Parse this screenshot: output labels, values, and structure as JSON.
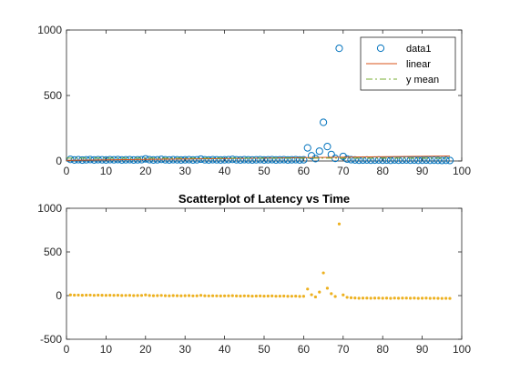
{
  "figure": {
    "background": "#ffffff",
    "axis_color": "#262626"
  },
  "chart_data": [
    {
      "type": "scatter",
      "title": "",
      "xlabel": "",
      "ylabel": "",
      "xlim": [
        0,
        100
      ],
      "ylim": [
        0,
        1000
      ],
      "xticks": [
        0,
        10,
        20,
        30,
        40,
        50,
        60,
        70,
        80,
        90,
        100
      ],
      "yticks": [
        0,
        500,
        1000
      ],
      "grid": false,
      "legend": {
        "position": "top-right",
        "entries": [
          "data1",
          "linear",
          "y mean"
        ]
      },
      "series": [
        {
          "name": "data1",
          "kind": "scatter",
          "marker": "open-circle",
          "color": "#0072BD",
          "x": [
            1,
            2,
            3,
            4,
            5,
            6,
            7,
            8,
            9,
            10,
            11,
            12,
            13,
            14,
            15,
            16,
            17,
            18,
            19,
            20,
            21,
            22,
            23,
            24,
            25,
            26,
            27,
            28,
            29,
            30,
            31,
            32,
            33,
            34,
            35,
            36,
            37,
            38,
            39,
            40,
            41,
            42,
            43,
            44,
            45,
            46,
            47,
            48,
            49,
            50,
            51,
            52,
            53,
            54,
            55,
            56,
            57,
            58,
            59,
            60,
            61,
            62,
            63,
            64,
            65,
            66,
            67,
            68,
            69,
            70,
            71,
            72,
            73,
            74,
            75,
            76,
            77,
            78,
            79,
            80,
            81,
            82,
            83,
            84,
            85,
            86,
            87,
            88,
            89,
            90,
            91,
            92,
            93,
            94,
            95,
            96,
            97
          ],
          "y": [
            12,
            8,
            10,
            7,
            9,
            11,
            8,
            10,
            9,
            8,
            10,
            9,
            11,
            8,
            9,
            10,
            8,
            9,
            10,
            16,
            10,
            8,
            9,
            12,
            9,
            8,
            10,
            9,
            8,
            9,
            10,
            8,
            9,
            14,
            9,
            8,
            10,
            9,
            8,
            9,
            10,
            12,
            9,
            8,
            10,
            9,
            8,
            9,
            10,
            8,
            9,
            10,
            8,
            9,
            10,
            8,
            9,
            10,
            8,
            9,
            100,
            40,
            18,
            75,
            295,
            110,
            50,
            20,
            860,
            35,
            15,
            10,
            8,
            6,
            7,
            8,
            6,
            7,
            8,
            6,
            7,
            5,
            8,
            6,
            7,
            8,
            6,
            7,
            5,
            6,
            7,
            5,
            6,
            5,
            4,
            5,
            4
          ]
        },
        {
          "name": "linear",
          "kind": "line",
          "color": "#D95319",
          "x": [
            0,
            97
          ],
          "y": [
            5,
            38
          ]
        },
        {
          "name": "y mean",
          "kind": "dashdot",
          "color": "#77AC30",
          "x": [
            0,
            97
          ],
          "y": [
            22,
            22
          ]
        }
      ]
    },
    {
      "type": "scatter",
      "title": "Scatterplot of Latency vs Time",
      "xlabel": "",
      "ylabel": "",
      "xlim": [
        0,
        100
      ],
      "ylim": [
        -500,
        1000
      ],
      "xticks": [
        0,
        10,
        20,
        30,
        40,
        50,
        60,
        70,
        80,
        90,
        100
      ],
      "yticks": [
        -500,
        0,
        500,
        1000
      ],
      "grid": false,
      "series": [
        {
          "kind": "scatter",
          "marker": "dot",
          "color": "#EDB120",
          "x": [
            1,
            2,
            3,
            4,
            5,
            6,
            7,
            8,
            9,
            10,
            11,
            12,
            13,
            14,
            15,
            16,
            17,
            18,
            19,
            20,
            21,
            22,
            23,
            24,
            25,
            26,
            27,
            28,
            29,
            30,
            31,
            32,
            33,
            34,
            35,
            36,
            37,
            38,
            39,
            40,
            41,
            42,
            43,
            44,
            45,
            46,
            47,
            48,
            49,
            50,
            51,
            52,
            53,
            54,
            55,
            56,
            57,
            58,
            59,
            60,
            61,
            62,
            63,
            64,
            65,
            66,
            67,
            68,
            69,
            70,
            71,
            72,
            73,
            74,
            75,
            76,
            77,
            78,
            79,
            80,
            81,
            82,
            83,
            84,
            85,
            86,
            87,
            88,
            89,
            90,
            91,
            92,
            93,
            94,
            95,
            96,
            97
          ],
          "y": [
            8,
            5,
            6,
            4,
            5,
            6,
            3,
            5,
            4,
            3,
            4,
            3,
            4,
            1,
            2,
            3,
            0,
            1,
            2,
            8,
            1,
            -1,
            0,
            2,
            -1,
            -2,
            0,
            -1,
            -2,
            -1,
            0,
            -3,
            -2,
            3,
            -2,
            -3,
            -2,
            -3,
            -4,
            -3,
            -2,
            -1,
            -4,
            -5,
            -3,
            -4,
            -6,
            -5,
            -4,
            -6,
            -5,
            -4,
            -7,
            -6,
            -5,
            -8,
            -7,
            -6,
            -9,
            -8,
            75,
            10,
            -15,
            40,
            260,
            85,
            22,
            -10,
            820,
            8,
            -20,
            -25,
            -27,
            -30,
            -29,
            -28,
            -30,
            -29,
            -28,
            -30,
            -29,
            -31,
            -28,
            -30,
            -29,
            -28,
            -30,
            -29,
            -31,
            -30,
            -29,
            -31,
            -30,
            -31,
            -32,
            -31,
            -32
          ]
        }
      ]
    }
  ]
}
